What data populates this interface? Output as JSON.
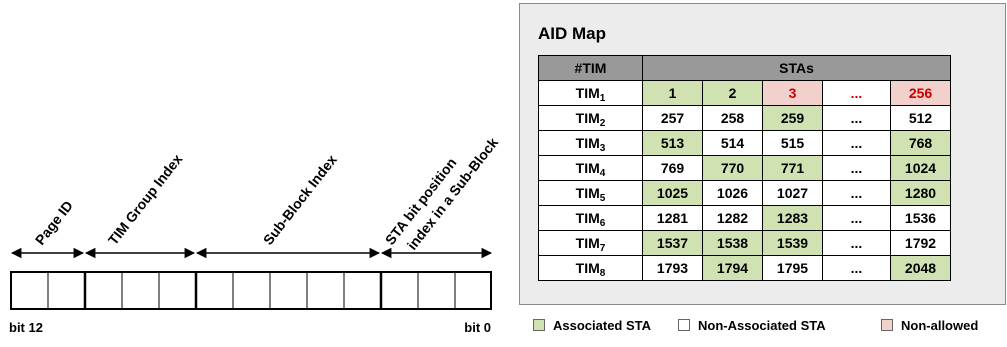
{
  "fields": [
    {
      "label": "Page ID"
    },
    {
      "label": "TIM Group Index"
    },
    {
      "label": "Sub-Block Index"
    },
    {
      "label_line1": "STA bit position",
      "label_line2": "index in a Sub-Block"
    }
  ],
  "bit_labels": {
    "msb": "bit 12",
    "lsb": "bit 0"
  },
  "aid_map": {
    "title": "AID Map",
    "header": {
      "tim": "#TIM",
      "stas": "STAs"
    },
    "rows": [
      {
        "tim": "TIM",
        "sub": "1",
        "cells": [
          {
            "v": "1",
            "s": "assoc"
          },
          {
            "v": "2",
            "s": "assoc"
          },
          {
            "v": "3",
            "s": "na"
          },
          {
            "v": "...",
            "s": "na_dots"
          },
          {
            "v": "256",
            "s": "na"
          }
        ]
      },
      {
        "tim": "TIM",
        "sub": "2",
        "cells": [
          {
            "v": "257",
            "s": "non"
          },
          {
            "v": "258",
            "s": "non"
          },
          {
            "v": "259",
            "s": "assoc"
          },
          {
            "v": "...",
            "s": "non"
          },
          {
            "v": "512",
            "s": "non"
          }
        ]
      },
      {
        "tim": "TIM",
        "sub": "3",
        "cells": [
          {
            "v": "513",
            "s": "assoc"
          },
          {
            "v": "514",
            "s": "non"
          },
          {
            "v": "515",
            "s": "non"
          },
          {
            "v": "...",
            "s": "non"
          },
          {
            "v": "768",
            "s": "assoc"
          }
        ]
      },
      {
        "tim": "TIM",
        "sub": "4",
        "cells": [
          {
            "v": "769",
            "s": "non"
          },
          {
            "v": "770",
            "s": "assoc"
          },
          {
            "v": "771",
            "s": "assoc"
          },
          {
            "v": "...",
            "s": "non"
          },
          {
            "v": "1024",
            "s": "assoc"
          }
        ]
      },
      {
        "tim": "TIM",
        "sub": "5",
        "cells": [
          {
            "v": "1025",
            "s": "assoc"
          },
          {
            "v": "1026",
            "s": "non"
          },
          {
            "v": "1027",
            "s": "non"
          },
          {
            "v": "...",
            "s": "non"
          },
          {
            "v": "1280",
            "s": "assoc"
          }
        ]
      },
      {
        "tim": "TIM",
        "sub": "6",
        "cells": [
          {
            "v": "1281",
            "s": "non"
          },
          {
            "v": "1282",
            "s": "non"
          },
          {
            "v": "1283",
            "s": "assoc"
          },
          {
            "v": "...",
            "s": "non"
          },
          {
            "v": "1536",
            "s": "non"
          }
        ]
      },
      {
        "tim": "TIM",
        "sub": "7",
        "cells": [
          {
            "v": "1537",
            "s": "assoc"
          },
          {
            "v": "1538",
            "s": "assoc"
          },
          {
            "v": "1539",
            "s": "assoc"
          },
          {
            "v": "...",
            "s": "non"
          },
          {
            "v": "1792",
            "s": "non"
          }
        ]
      },
      {
        "tim": "TIM",
        "sub": "8",
        "cells": [
          {
            "v": "1793",
            "s": "non"
          },
          {
            "v": "1794",
            "s": "assoc"
          },
          {
            "v": "1795",
            "s": "non"
          },
          {
            "v": "...",
            "s": "non"
          },
          {
            "v": "2048",
            "s": "assoc"
          }
        ]
      }
    ]
  },
  "legend": [
    {
      "label": "Associated STA",
      "color": "#d0e2b2"
    },
    {
      "label": "Non-Associated STA",
      "color": "#ffffff"
    },
    {
      "label": "Non-allowed",
      "color": "#f2d0cc"
    }
  ],
  "colors": {
    "associated": "#d0e2b2",
    "non_associated": "#ffffff",
    "non_allowed": "#f2d0cc",
    "non_allowed_text": "#cc0000",
    "header_bg": "#999999"
  }
}
